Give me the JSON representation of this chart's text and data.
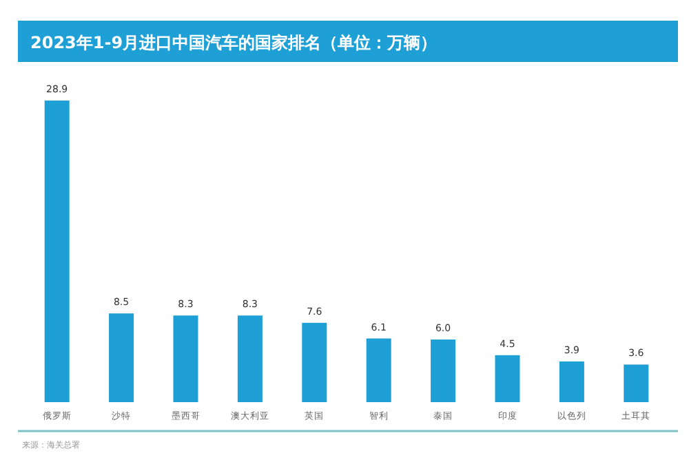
{
  "chart_data": {
    "type": "bar",
    "title": "2023年1-9月进口中国汽车的国家排名（单位：万辆）",
    "categories": [
      "俄罗斯",
      "沙特",
      "墨西哥",
      "澳大利亚",
      "英国",
      "智利",
      "泰国",
      "印度",
      "以色列",
      "土耳其"
    ],
    "values": [
      28.9,
      8.5,
      8.3,
      8.3,
      7.6,
      6.1,
      6.0,
      4.5,
      3.9,
      3.6
    ],
    "value_labels": [
      "28.9",
      "8.5",
      "8.3",
      "8.3",
      "7.6",
      "6.1",
      "6.0",
      "4.5",
      "3.9",
      "3.6"
    ],
    "color": "#1e9fd6",
    "annotations": [
      "来源：海关总署"
    ]
  }
}
